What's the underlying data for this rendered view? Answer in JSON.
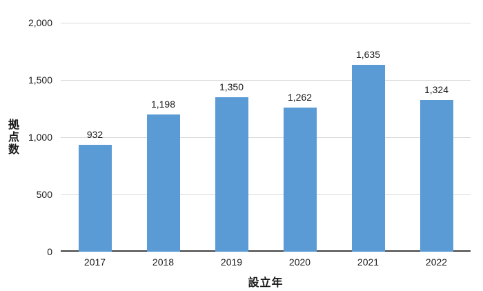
{
  "chart_data": {
    "type": "bar",
    "categories": [
      "2017",
      "2018",
      "2019",
      "2020",
      "2021",
      "2022"
    ],
    "values": [
      932,
      1198,
      1350,
      1262,
      1635,
      1324
    ],
    "value_labels": [
      "932",
      "1,198",
      "1,350",
      "1,262",
      "1,635",
      "1,324"
    ],
    "title": "",
    "xlabel": "設立年",
    "ylabel": "拠点数",
    "ylim": [
      0,
      2000
    ],
    "yticks": [
      0,
      500,
      1000,
      1500,
      2000
    ],
    "ytick_labels": [
      "0",
      "500",
      "1,000",
      "1,500",
      "2,000"
    ],
    "grid": "horizontal",
    "legend": "none",
    "bar_color": "#5b9bd5",
    "gridline_color": "#d9d9d9",
    "axis_line_color": "#404040"
  }
}
